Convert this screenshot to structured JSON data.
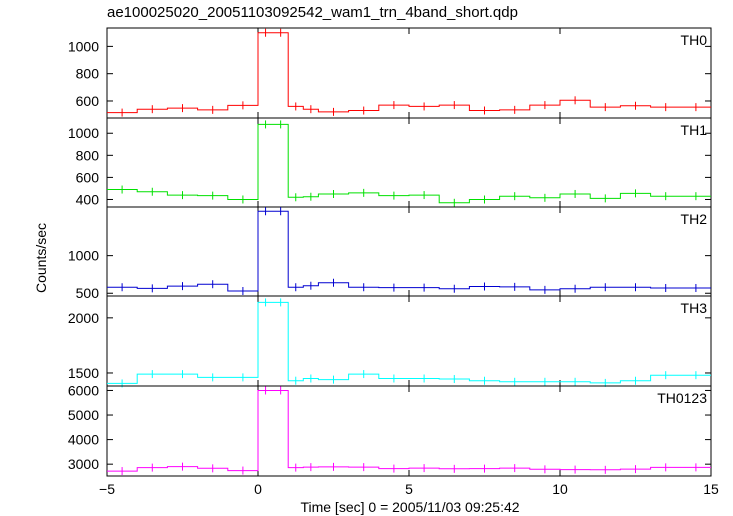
{
  "title": "ae100025020_20051103092542_wam1_trn_4band_short.qdp",
  "xlabel": "Time [sec] 0 = 2005/11/03 09:25:42",
  "ylabel": "Counts/sec",
  "chart_data": {
    "type": "line",
    "step": true,
    "x_edges": [
      -5,
      -4,
      -3,
      -2,
      -1,
      0,
      0.5,
      1,
      1.5,
      2,
      3,
      4,
      5,
      6,
      7,
      8,
      9,
      10,
      11,
      12,
      13,
      14,
      15
    ],
    "x_ticks": [
      -5,
      0,
      5,
      10,
      15
    ],
    "x_tick_labels": [
      "−5",
      "0",
      "5",
      "10",
      "15"
    ],
    "xlim": [
      -5,
      15
    ],
    "grid": false,
    "panels": [
      {
        "name": "TH0",
        "color": "#ff0000",
        "ylim": [
          490,
          1120
        ],
        "yticks": [
          600,
          800,
          1000
        ],
        "ytick_labels": [
          "600",
          "800",
          "1000"
        ],
        "values": [
          515,
          540,
          548,
          535,
          568,
          1100,
          1100,
          560,
          540,
          520,
          530,
          570,
          560,
          570,
          530,
          535,
          570,
          605,
          555,
          565,
          555,
          555
        ]
      },
      {
        "name": "TH1",
        "color": "#00e000",
        "ylim": [
          350,
          1120
        ],
        "yticks": [
          400,
          600,
          800,
          1000
        ],
        "ytick_labels": [
          "400",
          "600",
          "800",
          "1000"
        ],
        "values": [
          490,
          470,
          440,
          435,
          400,
          1080,
          1080,
          420,
          425,
          450,
          460,
          435,
          440,
          370,
          400,
          430,
          415,
          450,
          410,
          455,
          430,
          430
        ]
      },
      {
        "name": "TH2",
        "color": "#0000d0",
        "ylim": [
          490,
          1620
        ],
        "yticks": [
          500,
          1000
        ],
        "ytick_labels": [
          "500",
          "1000"
        ],
        "values": [
          580,
          565,
          595,
          620,
          530,
          1590,
          1590,
          580,
          600,
          640,
          580,
          575,
          575,
          560,
          590,
          585,
          545,
          560,
          580,
          580,
          570,
          570
        ]
      },
      {
        "name": "TH3",
        "color": "#00ffff",
        "ylim": [
          1400,
          2180
        ],
        "yticks": [
          1500,
          2000
        ],
        "ytick_labels": [
          "1500",
          "2000"
        ],
        "values": [
          1405,
          1490,
          1490,
          1460,
          1460,
          2140,
          2140,
          1430,
          1450,
          1440,
          1490,
          1450,
          1450,
          1445,
          1430,
          1420,
          1420,
          1420,
          1410,
          1430,
          1480,
          1480
        ]
      },
      {
        "name": "TH0123",
        "color": "#ff00ff",
        "ylim": [
          2600,
          6100
        ],
        "yticks": [
          3000,
          4000,
          5000,
          6000
        ],
        "ytick_labels": [
          "3000",
          "4000",
          "5000",
          "6000"
        ],
        "values": [
          2720,
          2860,
          2900,
          2830,
          2740,
          6000,
          6000,
          2860,
          2880,
          2890,
          2880,
          2820,
          2840,
          2810,
          2820,
          2840,
          2790,
          2780,
          2770,
          2800,
          2870,
          2870
        ]
      }
    ]
  }
}
